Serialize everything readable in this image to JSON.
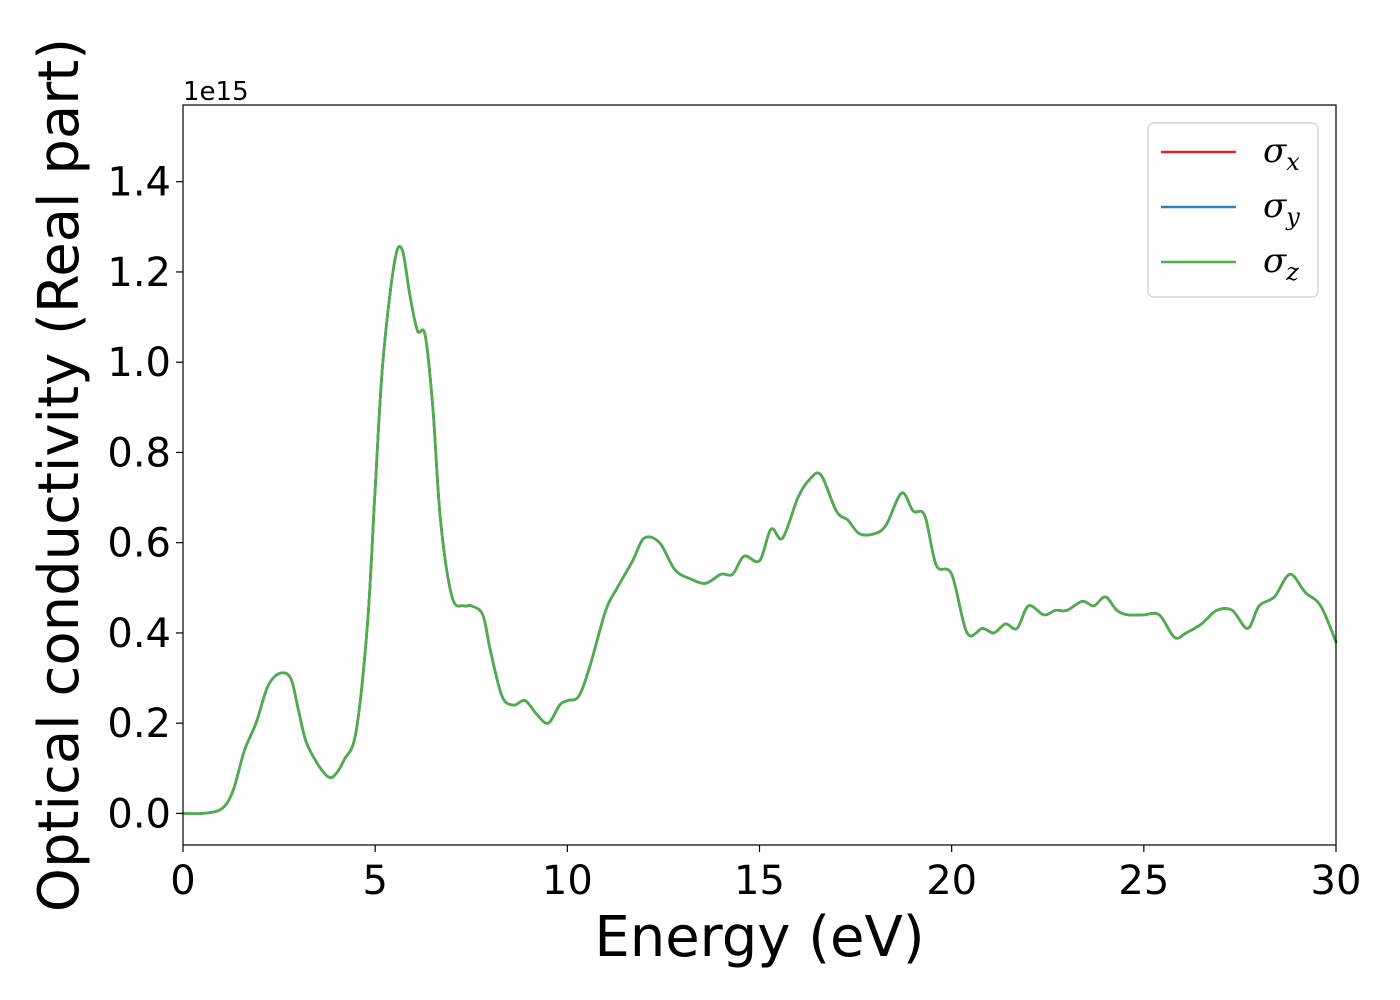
{
  "chart_data": {
    "type": "line",
    "xlabel": "Energy (eV)",
    "ylabel": "Optical conductivity (Real part)",
    "y_offset_text": "1e15",
    "xlim": [
      0,
      30
    ],
    "ylim": [
      -0.07,
      1.57
    ],
    "y_scale_multiplier": 1000000000000000.0,
    "x_ticks": [
      0,
      5,
      10,
      15,
      20,
      25,
      30
    ],
    "x_tick_labels": [
      "0",
      "5",
      "10",
      "15",
      "20",
      "25",
      "30"
    ],
    "y_ticks": [
      0.0,
      0.2,
      0.4,
      0.6,
      0.8,
      1.0,
      1.2,
      1.4
    ],
    "y_tick_labels": [
      "0.0",
      "0.2",
      "0.4",
      "0.6",
      "0.8",
      "1.0",
      "1.2",
      "1.4"
    ],
    "grid": false,
    "legend_position": "top-right",
    "legend": [
      {
        "symbol": "σ",
        "sub": "x",
        "color": "#d62728"
      },
      {
        "symbol": "σ",
        "sub": "y",
        "color": "#377eb8"
      },
      {
        "symbol": "σ",
        "sub": "z",
        "color": "#4daf4a"
      }
    ],
    "x": [
      0,
      0.5,
      1.0,
      1.3,
      1.6,
      1.9,
      2.2,
      2.5,
      2.8,
      3.0,
      3.2,
      3.5,
      3.8,
      4.0,
      4.2,
      4.5,
      4.8,
      5.0,
      5.2,
      5.5,
      5.7,
      5.9,
      6.1,
      6.3,
      6.5,
      6.7,
      7.0,
      7.3,
      7.5,
      7.8,
      8.0,
      8.3,
      8.6,
      8.9,
      9.2,
      9.5,
      9.8,
      10.0,
      10.3,
      10.6,
      11.0,
      11.3,
      11.7,
      12.0,
      12.4,
      12.8,
      13.2,
      13.6,
      14.0,
      14.3,
      14.6,
      15.0,
      15.3,
      15.6,
      16.0,
      16.3,
      16.6,
      17.0,
      17.3,
      17.6,
      18.0,
      18.3,
      18.7,
      19.0,
      19.3,
      19.6,
      20.0,
      20.4,
      20.8,
      21.1,
      21.4,
      21.7,
      22.0,
      22.4,
      22.7,
      23.0,
      23.4,
      23.7,
      24.0,
      24.3,
      24.6,
      25.0,
      25.4,
      25.8,
      26.1,
      26.5,
      26.9,
      27.3,
      27.7,
      28.0,
      28.4,
      28.8,
      29.2,
      29.6,
      30.0
    ],
    "series": [
      {
        "name": "σx",
        "color": "#d62728",
        "values": [
          0.0,
          0.0,
          0.01,
          0.05,
          0.14,
          0.2,
          0.28,
          0.31,
          0.3,
          0.23,
          0.16,
          0.11,
          0.08,
          0.09,
          0.12,
          0.18,
          0.42,
          0.72,
          1.0,
          1.22,
          1.25,
          1.15,
          1.07,
          1.06,
          0.9,
          0.65,
          0.48,
          0.46,
          0.46,
          0.44,
          0.36,
          0.26,
          0.24,
          0.25,
          0.22,
          0.2,
          0.24,
          0.25,
          0.26,
          0.33,
          0.45,
          0.5,
          0.56,
          0.61,
          0.6,
          0.54,
          0.52,
          0.51,
          0.53,
          0.53,
          0.57,
          0.56,
          0.63,
          0.61,
          0.7,
          0.74,
          0.75,
          0.67,
          0.65,
          0.62,
          0.62,
          0.64,
          0.71,
          0.67,
          0.66,
          0.55,
          0.53,
          0.4,
          0.41,
          0.4,
          0.42,
          0.41,
          0.46,
          0.44,
          0.45,
          0.45,
          0.47,
          0.46,
          0.48,
          0.45,
          0.44,
          0.44,
          0.44,
          0.39,
          0.4,
          0.42,
          0.45,
          0.45,
          0.41,
          0.46,
          0.48,
          0.53,
          0.49,
          0.46,
          0.38
        ]
      },
      {
        "name": "σy",
        "color": "#377eb8",
        "values": [
          0.0,
          0.0,
          0.01,
          0.05,
          0.14,
          0.2,
          0.28,
          0.31,
          0.3,
          0.23,
          0.16,
          0.11,
          0.08,
          0.09,
          0.12,
          0.18,
          0.42,
          0.72,
          1.0,
          1.22,
          1.25,
          1.15,
          1.07,
          1.06,
          0.9,
          0.65,
          0.48,
          0.46,
          0.46,
          0.44,
          0.36,
          0.26,
          0.24,
          0.25,
          0.22,
          0.2,
          0.24,
          0.25,
          0.26,
          0.33,
          0.45,
          0.5,
          0.56,
          0.61,
          0.6,
          0.54,
          0.52,
          0.51,
          0.53,
          0.53,
          0.57,
          0.56,
          0.63,
          0.61,
          0.7,
          0.74,
          0.75,
          0.67,
          0.65,
          0.62,
          0.62,
          0.64,
          0.71,
          0.67,
          0.66,
          0.55,
          0.53,
          0.4,
          0.41,
          0.4,
          0.42,
          0.41,
          0.46,
          0.44,
          0.45,
          0.45,
          0.47,
          0.46,
          0.48,
          0.45,
          0.44,
          0.44,
          0.44,
          0.39,
          0.4,
          0.42,
          0.45,
          0.45,
          0.41,
          0.46,
          0.48,
          0.53,
          0.49,
          0.46,
          0.38
        ]
      },
      {
        "name": "σz",
        "color": "#4daf4a",
        "values": [
          0.0,
          0.0,
          0.01,
          0.05,
          0.14,
          0.2,
          0.28,
          0.31,
          0.3,
          0.23,
          0.16,
          0.11,
          0.08,
          0.09,
          0.12,
          0.18,
          0.42,
          0.72,
          1.0,
          1.22,
          1.25,
          1.15,
          1.07,
          1.06,
          0.9,
          0.65,
          0.48,
          0.46,
          0.46,
          0.44,
          0.36,
          0.26,
          0.24,
          0.25,
          0.22,
          0.2,
          0.24,
          0.25,
          0.26,
          0.33,
          0.45,
          0.5,
          0.56,
          0.61,
          0.6,
          0.54,
          0.52,
          0.51,
          0.53,
          0.53,
          0.57,
          0.56,
          0.63,
          0.61,
          0.7,
          0.74,
          0.75,
          0.67,
          0.65,
          0.62,
          0.62,
          0.64,
          0.71,
          0.67,
          0.66,
          0.55,
          0.53,
          0.4,
          0.41,
          0.4,
          0.42,
          0.41,
          0.46,
          0.44,
          0.45,
          0.45,
          0.47,
          0.46,
          0.48,
          0.45,
          0.44,
          0.44,
          0.44,
          0.39,
          0.4,
          0.42,
          0.45,
          0.45,
          0.41,
          0.46,
          0.48,
          0.53,
          0.49,
          0.46,
          0.38
        ]
      }
    ]
  }
}
